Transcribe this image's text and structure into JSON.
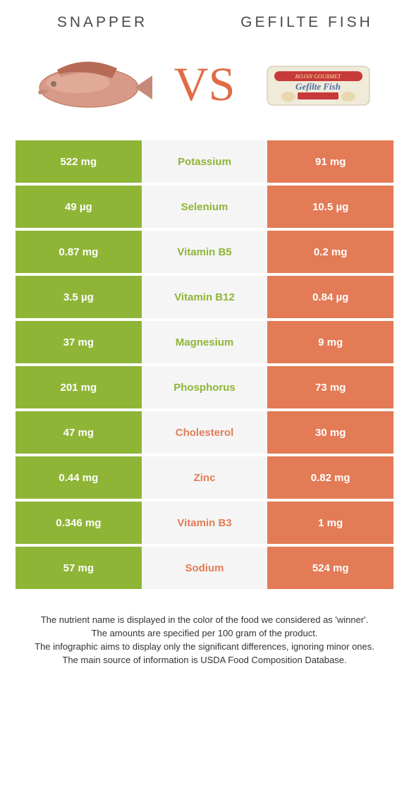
{
  "left_title": "SNAPPER",
  "right_title": "GEFILTE FISH",
  "vs_label": "VS",
  "colors": {
    "left": "#8fb537",
    "right": "#e37b56",
    "mid_bg": "#f5f5f5"
  },
  "rows": [
    {
      "left": "522 mg",
      "label": "Potassium",
      "right": "91 mg",
      "winner": "left"
    },
    {
      "left": "49 µg",
      "label": "Selenium",
      "right": "10.5 µg",
      "winner": "left"
    },
    {
      "left": "0.87 mg",
      "label": "Vitamin B5",
      "right": "0.2 mg",
      "winner": "left"
    },
    {
      "left": "3.5 µg",
      "label": "Vitamin B12",
      "right": "0.84 µg",
      "winner": "left"
    },
    {
      "left": "37 mg",
      "label": "Magnesium",
      "right": "9 mg",
      "winner": "left"
    },
    {
      "left": "201 mg",
      "label": "Phosphorus",
      "right": "73 mg",
      "winner": "left"
    },
    {
      "left": "47 mg",
      "label": "Cholesterol",
      "right": "30 mg",
      "winner": "right"
    },
    {
      "left": "0.44 mg",
      "label": "Zinc",
      "right": "0.82 mg",
      "winner": "right"
    },
    {
      "left": "0.346 mg",
      "label": "Vitamin B3",
      "right": "1 mg",
      "winner": "right"
    },
    {
      "left": "57 mg",
      "label": "Sodium",
      "right": "524 mg",
      "winner": "right"
    }
  ],
  "footer_lines": [
    "The nutrient name is displayed in the color of the food we considered as 'winner'.",
    "The amounts are specified per 100 gram of the product.",
    "The infographic aims to display only the significant differences, ignoring minor ones.",
    "The main source of information is USDA Food Composition Database."
  ]
}
